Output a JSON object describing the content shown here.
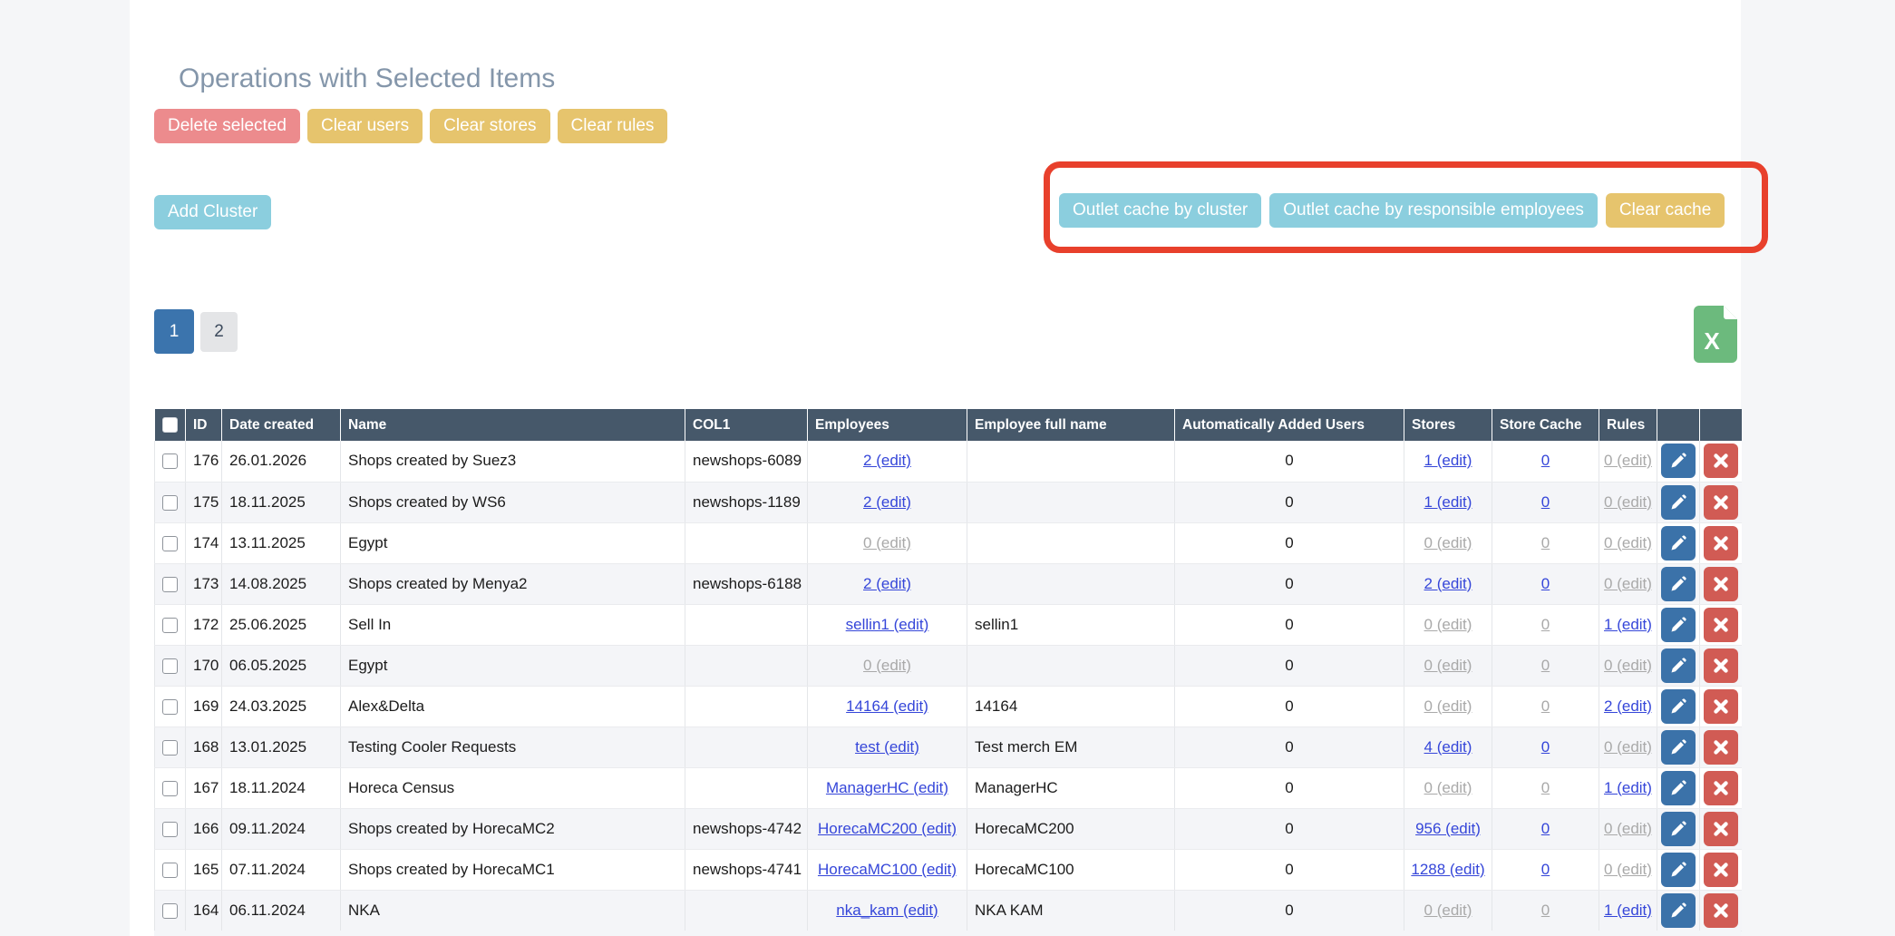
{
  "page": {
    "title": "Operations with Selected Items"
  },
  "toolbar": {
    "buttons": [
      {
        "label": "Delete selected",
        "variant": "danger"
      },
      {
        "label": "Clear users",
        "variant": "warning"
      },
      {
        "label": "Clear stores",
        "variant": "warning"
      },
      {
        "label": "Clear rules",
        "variant": "warning"
      }
    ]
  },
  "cluster": {
    "add_button": "Add Cluster"
  },
  "cache_panel": {
    "annotated": true,
    "buttons": [
      {
        "label": "Outlet cache by cluster",
        "variant": "info"
      },
      {
        "label": "Outlet cache by responsible employees",
        "variant": "info"
      },
      {
        "label": "Clear cache",
        "variant": "warning"
      }
    ]
  },
  "pagination": {
    "pages": [
      {
        "label": "1",
        "active": true
      },
      {
        "label": "2",
        "active": false
      }
    ]
  },
  "export": {
    "type": "excel",
    "letter": "X"
  },
  "colors": {
    "danger": "#ec8b8d",
    "warning": "#e6c46d",
    "info": "#8bcede",
    "annotation": "#e8402c",
    "header_bg": "#46586a",
    "page_bg": "#f5f6f8",
    "active_page": "#3b74ad",
    "link": "#3546d9",
    "link_disabled": "#a9a9a9",
    "excel_green": "#6cba7d",
    "edit_btn": "#3b72a9",
    "delete_btn": "#d15b54",
    "stripe": "#f4f5f8"
  },
  "table": {
    "headers": [
      "",
      "ID",
      "Date created",
      "Name",
      "COL1",
      "Employees",
      "Employee full name",
      "Automatically Added Users",
      "Stores",
      "Store Cache",
      "Rules",
      "",
      ""
    ],
    "rows": [
      {
        "id": "176",
        "date": "26.01.2026",
        "name": "Shops created by Suez3",
        "col1": "newshops-6089",
        "employees": {
          "text": "2 (edit)",
          "active": true
        },
        "full_name": "",
        "auto_users": "0",
        "stores": {
          "text": "1 (edit)",
          "active": true
        },
        "store_cache": {
          "text": "0",
          "active": true
        },
        "rules": {
          "text": "0 (edit)",
          "active": false
        }
      },
      {
        "id": "175",
        "date": "18.11.2025",
        "name": "Shops created by WS6",
        "col1": "newshops-1189",
        "employees": {
          "text": "2 (edit)",
          "active": true
        },
        "full_name": "",
        "auto_users": "0",
        "stores": {
          "text": "1 (edit)",
          "active": true
        },
        "store_cache": {
          "text": "0",
          "active": true
        },
        "rules": {
          "text": "0 (edit)",
          "active": false
        }
      },
      {
        "id": "174",
        "date": "13.11.2025",
        "name": "Egypt",
        "col1": "",
        "employees": {
          "text": "0 (edit)",
          "active": false
        },
        "full_name": "",
        "auto_users": "0",
        "stores": {
          "text": "0 (edit)",
          "active": false
        },
        "store_cache": {
          "text": "0",
          "active": false
        },
        "rules": {
          "text": "0 (edit)",
          "active": false
        }
      },
      {
        "id": "173",
        "date": "14.08.2025",
        "name": "Shops created by Menya2",
        "col1": "newshops-6188",
        "employees": {
          "text": "2 (edit)",
          "active": true
        },
        "full_name": "",
        "auto_users": "0",
        "stores": {
          "text": "2 (edit)",
          "active": true
        },
        "store_cache": {
          "text": "0",
          "active": true
        },
        "rules": {
          "text": "0 (edit)",
          "active": false
        }
      },
      {
        "id": "172",
        "date": "25.06.2025",
        "name": "Sell In",
        "col1": "",
        "employees": {
          "text": "sellin1 (edit)",
          "active": true
        },
        "full_name": "sellin1",
        "auto_users": "0",
        "stores": {
          "text": "0 (edit)",
          "active": false
        },
        "store_cache": {
          "text": "0",
          "active": false
        },
        "rules": {
          "text": "1 (edit)",
          "active": true
        }
      },
      {
        "id": "170",
        "date": "06.05.2025",
        "name": "Egypt",
        "col1": "",
        "employees": {
          "text": "0 (edit)",
          "active": false
        },
        "full_name": "",
        "auto_users": "0",
        "stores": {
          "text": "0 (edit)",
          "active": false
        },
        "store_cache": {
          "text": "0",
          "active": false
        },
        "rules": {
          "text": "0 (edit)",
          "active": false
        }
      },
      {
        "id": "169",
        "date": "24.03.2025",
        "name": "Alex&Delta",
        "col1": "",
        "employees": {
          "text": "14164 (edit)",
          "active": true
        },
        "full_name": "14164",
        "auto_users": "0",
        "stores": {
          "text": "0 (edit)",
          "active": false
        },
        "store_cache": {
          "text": "0",
          "active": false
        },
        "rules": {
          "text": "2 (edit)",
          "active": true
        }
      },
      {
        "id": "168",
        "date": "13.01.2025",
        "name": "Testing Cooler Requests",
        "col1": "",
        "employees": {
          "text": "test (edit)",
          "active": true
        },
        "full_name": "Test merch EM",
        "auto_users": "0",
        "stores": {
          "text": "4 (edit)",
          "active": true
        },
        "store_cache": {
          "text": "0",
          "active": true
        },
        "rules": {
          "text": "0 (edit)",
          "active": false
        }
      },
      {
        "id": "167",
        "date": "18.11.2024",
        "name": "Horeca Census",
        "col1": "",
        "employees": {
          "text": "ManagerHC (edit)",
          "active": true
        },
        "full_name": "ManagerHC",
        "auto_users": "0",
        "stores": {
          "text": "0 (edit)",
          "active": false
        },
        "store_cache": {
          "text": "0",
          "active": false
        },
        "rules": {
          "text": "1 (edit)",
          "active": true
        }
      },
      {
        "id": "166",
        "date": "09.11.2024",
        "name": "Shops created by HorecaMC2",
        "col1": "newshops-4742",
        "employees": {
          "text": "HorecaMC200 (edit)",
          "active": true
        },
        "full_name": "HorecaMC200",
        "auto_users": "0",
        "stores": {
          "text": "956 (edit)",
          "active": true
        },
        "store_cache": {
          "text": "0",
          "active": true
        },
        "rules": {
          "text": "0 (edit)",
          "active": false
        }
      },
      {
        "id": "165",
        "date": "07.11.2024",
        "name": "Shops created by HorecaMC1",
        "col1": "newshops-4741",
        "employees": {
          "text": "HorecaMC100 (edit)",
          "active": true
        },
        "full_name": "HorecaMC100",
        "auto_users": "0",
        "stores": {
          "text": "1288 (edit)",
          "active": true
        },
        "store_cache": {
          "text": "0",
          "active": true
        },
        "rules": {
          "text": "0 (edit)",
          "active": false
        }
      },
      {
        "id": "164",
        "date": "06.11.2024",
        "name": "NKA",
        "col1": "",
        "employees": {
          "text": "nka_kam (edit)",
          "active": true
        },
        "full_name": "NKA KAM",
        "auto_users": "0",
        "stores": {
          "text": "0 (edit)",
          "active": false
        },
        "store_cache": {
          "text": "0",
          "active": false
        },
        "rules": {
          "text": "1 (edit)",
          "active": true
        }
      }
    ]
  }
}
